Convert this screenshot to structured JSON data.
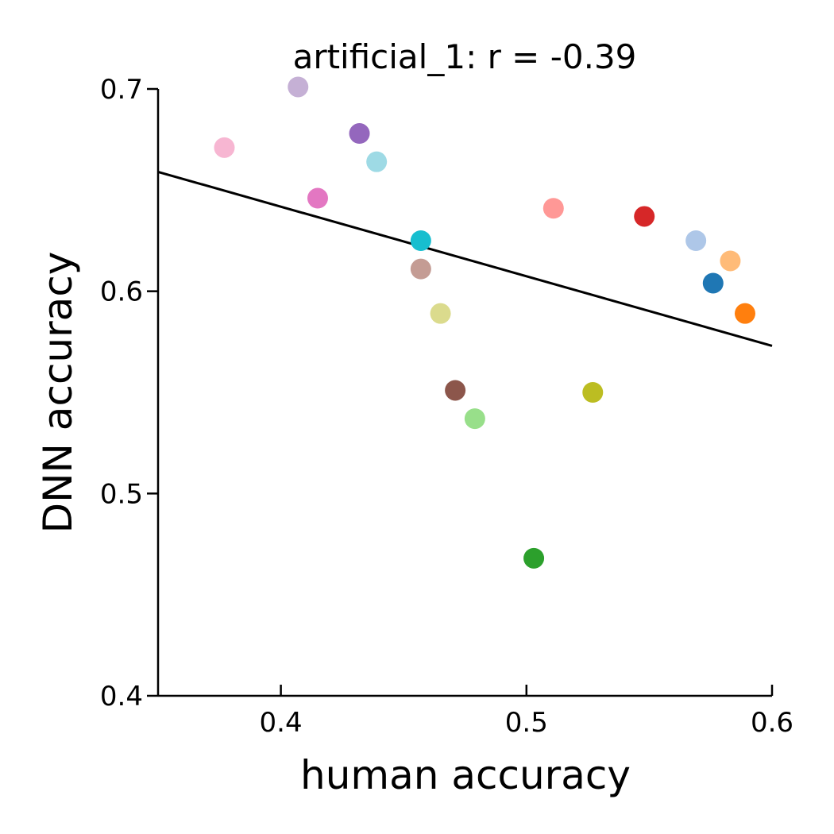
{
  "chart_data": {
    "type": "scatter",
    "title": "artificial_1: r = -0.39",
    "xlabel": "human accuracy",
    "ylabel": "DNN accuracy",
    "xlim": [
      0.35,
      0.6
    ],
    "ylim": [
      0.4,
      0.7
    ],
    "xticks": [
      0.4,
      0.5,
      0.6
    ],
    "xtick_labels": [
      "0.4",
      "0.5",
      "0.6"
    ],
    "yticks": [
      0.4,
      0.5,
      0.6,
      0.7
    ],
    "ytick_labels": [
      "0.4",
      "0.5",
      "0.6",
      "0.7"
    ],
    "grid": false,
    "points": [
      {
        "x": 0.407,
        "y": 0.701,
        "color": "#c5b0d5"
      },
      {
        "x": 0.377,
        "y": 0.671,
        "color": "#f7b6d2"
      },
      {
        "x": 0.432,
        "y": 0.678,
        "color": "#9467bd"
      },
      {
        "x": 0.439,
        "y": 0.664,
        "color": "#9edae5"
      },
      {
        "x": 0.415,
        "y": 0.646,
        "color": "#e377c2"
      },
      {
        "x": 0.457,
        "y": 0.625,
        "color": "#17becf"
      },
      {
        "x": 0.457,
        "y": 0.611,
        "color": "#c49c94"
      },
      {
        "x": 0.465,
        "y": 0.589,
        "color": "#dbdb8d"
      },
      {
        "x": 0.471,
        "y": 0.551,
        "color": "#8c564b"
      },
      {
        "x": 0.479,
        "y": 0.537,
        "color": "#98df8a"
      },
      {
        "x": 0.503,
        "y": 0.468,
        "color": "#2ca02c"
      },
      {
        "x": 0.511,
        "y": 0.641,
        "color": "#ff9896"
      },
      {
        "x": 0.527,
        "y": 0.55,
        "color": "#bcbd22"
      },
      {
        "x": 0.548,
        "y": 0.637,
        "color": "#d62728"
      },
      {
        "x": 0.569,
        "y": 0.625,
        "color": "#aec7e8"
      },
      {
        "x": 0.576,
        "y": 0.604,
        "color": "#1f77b4"
      },
      {
        "x": 0.583,
        "y": 0.615,
        "color": "#ffbb78"
      },
      {
        "x": 0.589,
        "y": 0.589,
        "color": "#ff7f0e"
      }
    ],
    "fit_line": {
      "x": [
        0.35,
        0.6
      ],
      "y": [
        0.659,
        0.573
      ],
      "color": "#000000"
    }
  }
}
